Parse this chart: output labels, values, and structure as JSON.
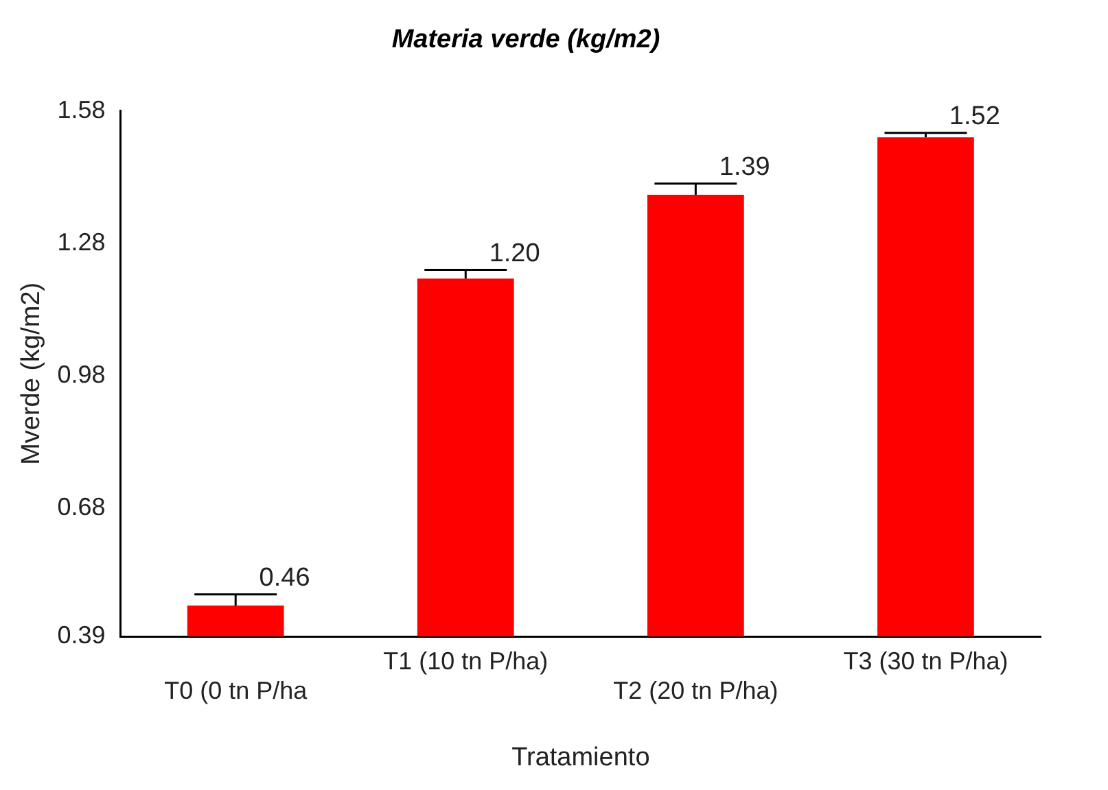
{
  "chart_data": {
    "type": "bar",
    "title": "Materia verde (kg/m2)",
    "xlabel": "Tratamiento",
    "ylabel": "Mverde (kg/m2)",
    "categories": [
      "T0 (0 tn P/ha",
      "T1 (10 tn P/ha)",
      "T2 (20 tn P/ha)",
      "T3 (30 tn P/ha)"
    ],
    "values": [
      0.46,
      1.2,
      1.39,
      1.52
    ],
    "errors": [
      0.025,
      0.02,
      0.025,
      0.01
    ],
    "color": "#ff0000",
    "value_labels": [
      "0.46",
      "1.20",
      "1.39",
      "1.52"
    ],
    "ylim": [
      0.39,
      1.58
    ],
    "yticks": [
      0.39,
      0.68,
      0.98,
      1.28,
      1.58
    ],
    "grid": false,
    "legend": false
  }
}
